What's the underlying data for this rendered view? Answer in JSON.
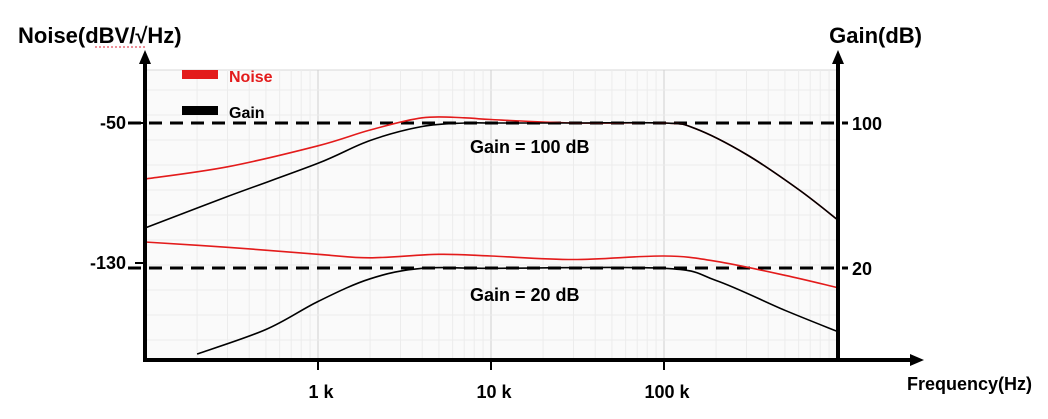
{
  "chart_data": {
    "type": "line",
    "left_axis_title": "Noise(dBV/√Hz)",
    "right_axis_title": "Gain(dB)",
    "x_axis_title": "Frequency(Hz)",
    "x_scale": "log",
    "x_ticks": [
      {
        "value": 1000,
        "label": "1 k"
      },
      {
        "value": 10000,
        "label": "10 k"
      },
      {
        "value": 100000,
        "label": "100 k"
      }
    ],
    "left_ticks": [
      {
        "value": -50,
        "label": "-50"
      },
      {
        "value": -130,
        "label": "-130"
      }
    ],
    "right_ticks": [
      {
        "value": 100,
        "label": "100"
      },
      {
        "value": 20,
        "label": "20"
      }
    ],
    "grid": true,
    "legend": {
      "placement": "top-left",
      "entries": [
        {
          "label": "Noise",
          "color": "#e31b1b"
        },
        {
          "label": "Gain",
          "color": "#000000"
        }
      ]
    },
    "annotations": [
      {
        "text": "Gain = 100 dB",
        "ref_level": 100
      },
      {
        "text": "Gain = 20 dB",
        "ref_level": 20
      }
    ],
    "reference_lines": [
      {
        "axis": "right",
        "value": 100,
        "style": "dashed"
      },
      {
        "axis": "right",
        "value": 20,
        "style": "dashed"
      }
    ],
    "series": [
      {
        "series": "Noise",
        "condition": "Gain = 100 dB",
        "color": "#e31b1b",
        "points": [
          [
            100,
            -82
          ],
          [
            300,
            -75
          ],
          [
            1000,
            -63
          ],
          [
            2000,
            -54
          ],
          [
            4000,
            -47
          ],
          [
            7000,
            -47
          ],
          [
            10000,
            -48
          ],
          [
            30000,
            -50
          ],
          [
            100000,
            -50
          ],
          [
            150000,
            -53
          ],
          [
            300000,
            -68
          ],
          [
            600000,
            -88
          ],
          [
            1000000,
            -105
          ]
        ]
      },
      {
        "series": "Gain",
        "condition": "Gain = 100 dB",
        "color": "#000000",
        "points": [
          [
            100,
            -110
          ],
          [
            300,
            -92
          ],
          [
            1000,
            -73
          ],
          [
            2000,
            -60
          ],
          [
            4000,
            -52
          ],
          [
            7000,
            -50
          ],
          [
            10000,
            -50
          ],
          [
            30000,
            -50
          ],
          [
            100000,
            -50
          ],
          [
            150000,
            -53
          ],
          [
            300000,
            -68
          ],
          [
            600000,
            -88
          ],
          [
            1000000,
            -105
          ]
        ]
      },
      {
        "series": "Noise",
        "condition": "Gain = 20 dB",
        "color": "#e31b1b",
        "points": [
          [
            100,
            -118
          ],
          [
            300,
            -121
          ],
          [
            1000,
            -125
          ],
          [
            2000,
            -127
          ],
          [
            5000,
            -125
          ],
          [
            10000,
            -126
          ],
          [
            30000,
            -128
          ],
          [
            100000,
            -126
          ],
          [
            200000,
            -129
          ],
          [
            500000,
            -137
          ],
          [
            1000000,
            -144
          ]
        ]
      },
      {
        "series": "Gain",
        "condition": "Gain = 20 dB",
        "color": "#000000",
        "points": [
          [
            200,
            -182
          ],
          [
            500,
            -168
          ],
          [
            1000,
            -152
          ],
          [
            2000,
            -139
          ],
          [
            4000,
            -133
          ],
          [
            10000,
            -133
          ],
          [
            100000,
            -133
          ],
          [
            200000,
            -140
          ],
          [
            500000,
            -157
          ],
          [
            1000000,
            -169
          ]
        ]
      }
    ]
  }
}
